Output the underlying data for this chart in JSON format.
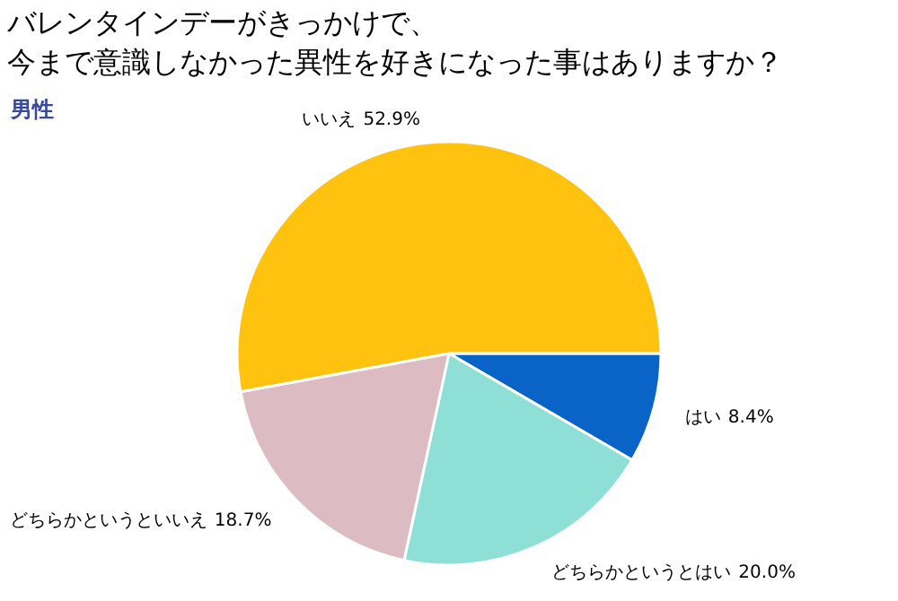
{
  "chart_data": {
    "type": "pie",
    "title": "バレンタインデーがきっかけで、",
    "subtitle": "今まで意識しなかった異性を好きになった事はありますか？",
    "annotations": [
      "男性"
    ],
    "categories": [
      "はい",
      "どちらかというとはい",
      "どちらかというといいえ",
      "いいえ"
    ],
    "values": [
      8.4,
      20.0,
      18.7,
      52.9
    ],
    "colors": [
      "#0a64c8",
      "#8ee0d6",
      "#dcbcc2",
      "#ffc20e"
    ],
    "value_labels": [
      "8.4%",
      "20.0%",
      "18.7%",
      "52.9%"
    ]
  }
}
